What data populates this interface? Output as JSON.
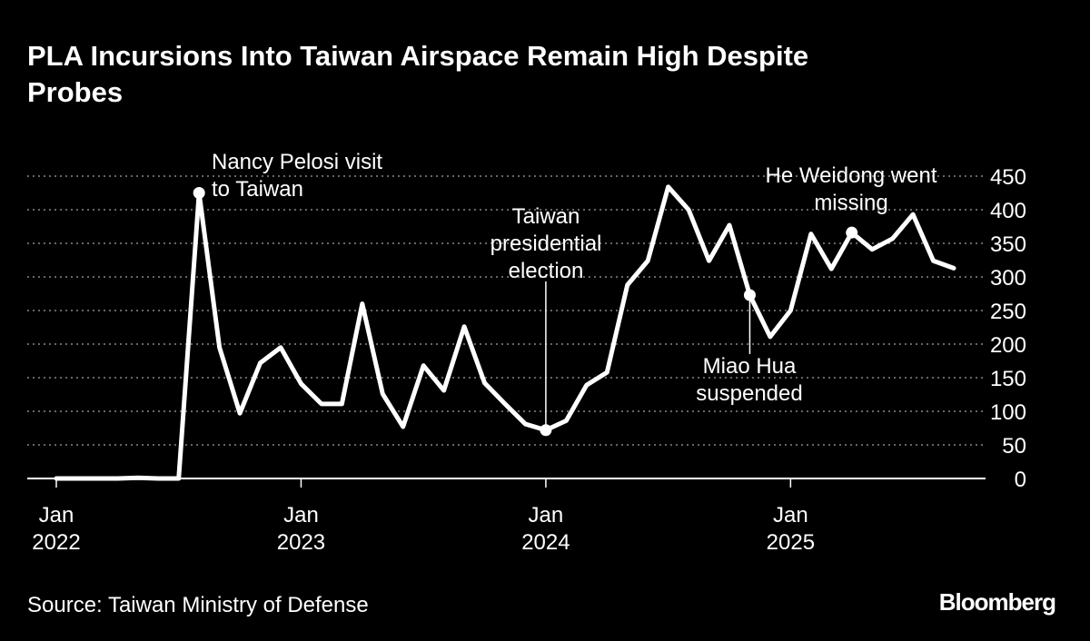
{
  "chart_data": {
    "type": "line",
    "title": "PLA Incursions Into Taiwan Airspace Remain High Despite Probes",
    "source": "Source: Taiwan Ministry of Defense",
    "brand": "Bloomberg",
    "color": "#ffffff",
    "grid": true,
    "x": [
      "2022-01",
      "2022-02",
      "2022-03",
      "2022-04",
      "2022-05",
      "2022-06",
      "2022-07",
      "2022-08",
      "2022-09",
      "2022-10",
      "2022-11",
      "2022-12",
      "2023-01",
      "2023-02",
      "2023-03",
      "2023-04",
      "2023-05",
      "2023-06",
      "2023-07",
      "2023-08",
      "2023-09",
      "2023-10",
      "2023-11",
      "2023-12",
      "2024-01",
      "2024-02",
      "2024-03",
      "2024-04",
      "2024-05",
      "2024-06",
      "2024-07",
      "2024-08",
      "2024-09",
      "2024-10",
      "2024-11",
      "2024-12",
      "2025-01",
      "2025-02",
      "2025-03",
      "2025-04",
      "2025-05",
      "2025-06",
      "2025-07",
      "2025-08",
      "2025-09"
    ],
    "values": [
      0,
      0,
      0,
      0,
      1,
      0,
      0,
      425,
      195,
      97,
      172,
      195,
      141,
      111,
      111,
      260,
      126,
      77,
      168,
      131,
      226,
      142,
      111,
      81,
      72,
      86,
      139,
      158,
      288,
      324,
      434,
      400,
      324,
      377,
      273,
      211,
      250,
      364,
      312,
      366,
      341,
      357,
      393,
      324,
      313
    ],
    "xlim": [
      "2022-01",
      "2025-09"
    ],
    "xticks": [
      {
        "value": "2022-01",
        "label": "Jan 2022"
      },
      {
        "value": "2023-01",
        "label": "Jan 2023"
      },
      {
        "value": "2024-01",
        "label": "Jan 2024"
      },
      {
        "value": "2025-01",
        "label": "Jan 2025"
      }
    ],
    "ylim": [
      0,
      450
    ],
    "yticks": [
      0,
      50,
      100,
      150,
      200,
      250,
      300,
      350,
      400,
      450
    ],
    "annotations": [
      {
        "x": "2022-08",
        "text": [
          "Nancy Pelosi visit",
          "to Taiwan"
        ]
      },
      {
        "x": "2024-01",
        "text": [
          "Taiwan",
          "presidential",
          "election"
        ]
      },
      {
        "x": "2024-11",
        "text": [
          "Miao Hua",
          "suspended"
        ]
      },
      {
        "x": "2025-04",
        "text": [
          "He Weidong went",
          "missing"
        ]
      }
    ]
  }
}
